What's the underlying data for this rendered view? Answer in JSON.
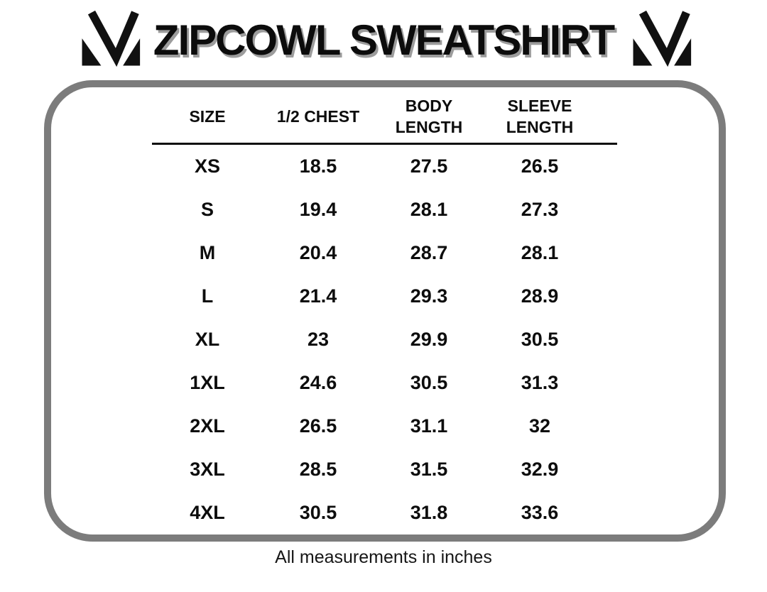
{
  "page": {
    "title": "ZIPCOWL SWEATSHIRT",
    "footnote": "All measurements in inches"
  },
  "logo": {
    "name": "brand-m-monogram",
    "color": "#111111"
  },
  "colors": {
    "background": "#ffffff",
    "frame_border": "#7c7c7c",
    "text": "#0d0d0d",
    "title_shadow": "#9c9c9c",
    "header_rule": "#0d0d0d"
  },
  "chart_data": {
    "type": "table",
    "title": "ZIPCOWL SWEATSHIRT",
    "columns": [
      "SIZE",
      "1/2 CHEST",
      "BODY\nLENGTH",
      "SLEEVE\nLENGTH"
    ],
    "rows": [
      [
        "XS",
        "18.5",
        "27.5",
        "26.5"
      ],
      [
        "S",
        "19.4",
        "28.1",
        "27.3"
      ],
      [
        "M",
        "20.4",
        "28.7",
        "28.1"
      ],
      [
        "L",
        "21.4",
        "29.3",
        "28.9"
      ],
      [
        "XL",
        "23",
        "29.9",
        "30.5"
      ],
      [
        "1XL",
        "24.6",
        "30.5",
        "31.3"
      ],
      [
        "2XL",
        "26.5",
        "31.1",
        "32"
      ],
      [
        "3XL",
        "28.5",
        "31.5",
        "32.9"
      ],
      [
        "4XL",
        "30.5",
        "31.8",
        "33.6"
      ]
    ],
    "units": "inches",
    "note": "All measurements in inches"
  }
}
